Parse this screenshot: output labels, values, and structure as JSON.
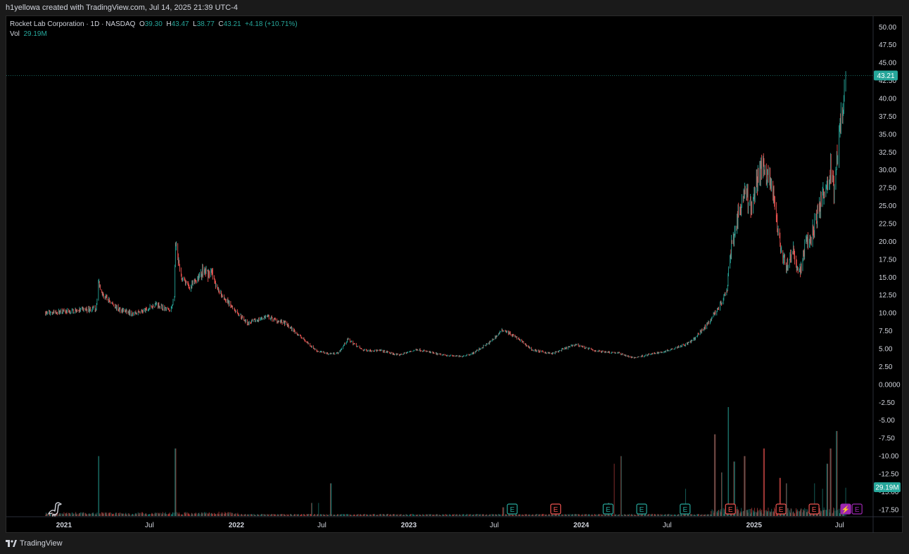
{
  "header": {
    "credit": "h1yellowa created with TradingView.com, Jul 14, 2025 21:39 UTC-4"
  },
  "legend": {
    "symbol": "Rocket Lab Corporation · 1D · NASDAQ",
    "o_label": "O",
    "o_val": "39.30",
    "h_label": "H",
    "h_val": "43.47",
    "l_label": "L",
    "l_val": "38.77",
    "c_label": "C",
    "c_val": "43.21",
    "change": "+4.18 (+10.71%)",
    "vol_label": "Vol",
    "vol_val": "29.19M"
  },
  "footer": {
    "brand": "TradingView"
  },
  "colors": {
    "up": "#26a69a",
    "down": "#ef5350",
    "axis_text": "#d1d4dc",
    "bg": "#000000",
    "purple": "#9c27b0"
  },
  "chart_data": {
    "type": "candlestick",
    "symbol": "Rocket Lab Corporation",
    "interval": "1D",
    "exchange": "NASDAQ",
    "y_ticks": [
      "50.00",
      "47.50",
      "45.00",
      "42.50",
      "40.00",
      "37.50",
      "35.00",
      "32.50",
      "30.00",
      "27.50",
      "25.00",
      "22.50",
      "20.00",
      "17.50",
      "15.00",
      "12.50",
      "10.00",
      "7.50",
      "5.00",
      "2.50",
      "0.0000",
      "-2.50",
      "-5.00",
      "-7.50",
      "-10.00",
      "-12.50",
      "-15.00",
      "-17.50"
    ],
    "ylim": [
      -18.5,
      51.5
    ],
    "x_ticks": [
      {
        "label": "2021",
        "date": "2021-01-01"
      },
      {
        "label": "Jul",
        "date": "2021-07-01"
      },
      {
        "label": "2022",
        "date": "2022-01-01"
      },
      {
        "label": "Jul",
        "date": "2022-07-01"
      },
      {
        "label": "2023",
        "date": "2023-01-01"
      },
      {
        "label": "Jul",
        "date": "2023-07-01"
      },
      {
        "label": "2024",
        "date": "2024-01-01"
      },
      {
        "label": "Jul",
        "date": "2024-07-01"
      },
      {
        "label": "2025",
        "date": "2025-01-01"
      },
      {
        "label": "Jul",
        "date": "2025-07-01"
      }
    ],
    "x_range": [
      "2020-09-01",
      "2025-09-10"
    ],
    "price_path": [
      [
        "2020-11-23",
        10.0
      ],
      [
        "2021-01-20",
        10.3
      ],
      [
        "2021-03-10",
        10.6
      ],
      [
        "2021-03-15",
        14.4
      ],
      [
        "2021-03-25",
        12.5
      ],
      [
        "2021-04-25",
        10.6
      ],
      [
        "2021-05-25",
        9.9
      ],
      [
        "2021-06-25",
        10.4
      ],
      [
        "2021-07-15",
        11.3
      ],
      [
        "2021-08-15",
        10.2
      ],
      [
        "2021-08-23",
        12.5
      ],
      [
        "2021-08-25",
        19.5
      ],
      [
        "2021-09-05",
        15.0
      ],
      [
        "2021-09-25",
        13.5
      ],
      [
        "2021-10-20",
        15.8
      ],
      [
        "2021-11-10",
        15.5
      ],
      [
        "2021-11-20",
        13.5
      ],
      [
        "2021-12-15",
        11.5
      ],
      [
        "2022-01-25",
        8.5
      ],
      [
        "2022-03-05",
        9.5
      ],
      [
        "2022-04-15",
        8.5
      ],
      [
        "2022-05-20",
        6.5
      ],
      [
        "2022-06-20",
        4.7
      ],
      [
        "2022-07-15",
        4.3
      ],
      [
        "2022-08-05",
        4.4
      ],
      [
        "2022-08-25",
        6.3
      ],
      [
        "2022-09-25",
        4.8
      ],
      [
        "2022-11-05",
        4.7
      ],
      [
        "2022-12-10",
        4.1
      ],
      [
        "2023-01-20",
        4.9
      ],
      [
        "2023-03-05",
        4.2
      ],
      [
        "2023-04-20",
        3.9
      ],
      [
        "2023-05-15",
        4.3
      ],
      [
        "2023-06-20",
        5.8
      ],
      [
        "2023-07-20",
        7.7
      ],
      [
        "2023-08-20",
        6.4
      ],
      [
        "2023-09-20",
        4.8
      ],
      [
        "2023-11-01",
        4.3
      ],
      [
        "2023-12-20",
        5.6
      ],
      [
        "2024-01-30",
        4.7
      ],
      [
        "2024-03-20",
        4.4
      ],
      [
        "2024-04-20",
        3.7
      ],
      [
        "2024-05-25",
        4.2
      ],
      [
        "2024-06-25",
        4.6
      ],
      [
        "2024-07-25",
        5.3
      ],
      [
        "2024-08-10",
        5.6
      ],
      [
        "2024-08-25",
        6.2
      ],
      [
        "2024-09-25",
        8.5
      ],
      [
        "2024-10-20",
        11.0
      ],
      [
        "2024-11-05",
        13.0
      ],
      [
        "2024-11-10",
        17.8
      ],
      [
        "2024-11-25",
        23.0
      ],
      [
        "2024-12-05",
        25.0
      ],
      [
        "2024-12-12",
        27.0
      ],
      [
        "2024-12-25",
        25.0
      ],
      [
        "2025-01-10",
        29.0
      ],
      [
        "2025-01-20",
        31.5
      ],
      [
        "2025-01-30",
        29.0
      ],
      [
        "2025-02-10",
        27.5
      ],
      [
        "2025-02-25",
        19.0
      ],
      [
        "2025-03-10",
        16.5
      ],
      [
        "2025-03-25",
        18.5
      ],
      [
        "2025-04-07",
        15.5
      ],
      [
        "2025-04-20",
        19.5
      ],
      [
        "2025-05-01",
        20.5
      ],
      [
        "2025-05-15",
        23.5
      ],
      [
        "2025-05-25",
        26.0
      ],
      [
        "2025-06-05",
        27.5
      ],
      [
        "2025-06-12",
        30.0
      ],
      [
        "2025-06-20",
        26.5
      ],
      [
        "2025-06-30",
        35.5
      ],
      [
        "2025-07-08",
        39.0
      ],
      [
        "2025-07-14",
        43.21
      ]
    ],
    "last_price": 43.21,
    "last_price_label": "43.21",
    "last_volume_label": "29.19M",
    "volume_spikes": [
      [
        "2021-03-15",
        0.55
      ],
      [
        "2021-08-25",
        0.62
      ],
      [
        "2022-06-10",
        0.12
      ],
      [
        "2022-06-25",
        0.12
      ],
      [
        "2022-07-20",
        0.3
      ],
      [
        "2023-07-20",
        0.08
      ],
      [
        "2023-11-10",
        0.08
      ],
      [
        "2024-02-28",
        0.12
      ],
      [
        "2024-03-10",
        0.48
      ],
      [
        "2024-03-25",
        0.55
      ],
      [
        "2024-08-10",
        0.25
      ],
      [
        "2024-10-10",
        0.75
      ],
      [
        "2024-10-25",
        0.4
      ],
      [
        "2024-11-08",
        1.0
      ],
      [
        "2024-11-20",
        0.5
      ],
      [
        "2024-12-12",
        0.55
      ],
      [
        "2025-01-22",
        0.62
      ],
      [
        "2025-02-25",
        0.35
      ],
      [
        "2025-03-10",
        0.3
      ],
      [
        "2025-05-10",
        0.3
      ],
      [
        "2025-05-25",
        0.25
      ],
      [
        "2025-06-05",
        0.48
      ],
      [
        "2025-06-12",
        0.62
      ],
      [
        "2025-06-25",
        0.78
      ],
      [
        "2025-07-14",
        0.26
      ]
    ],
    "events": [
      {
        "date": "2023-08-08",
        "label": "E",
        "kind": "earnings-up"
      },
      {
        "date": "2023-11-08",
        "label": "E",
        "kind": "earnings-down"
      },
      {
        "date": "2024-02-27",
        "label": "E",
        "kind": "earnings-up"
      },
      {
        "date": "2024-05-08",
        "label": "E",
        "kind": "earnings-up"
      },
      {
        "date": "2024-08-08",
        "label": "E",
        "kind": "earnings-up"
      },
      {
        "date": "2024-11-12",
        "label": "E",
        "kind": "earnings-down"
      },
      {
        "date": "2025-02-27",
        "label": "E",
        "kind": "earnings-down"
      },
      {
        "date": "2025-05-08",
        "label": "E",
        "kind": "earnings-down"
      },
      {
        "date": "2025-07-14",
        "label": "⚡",
        "kind": "flash"
      },
      {
        "date": "2025-08-07",
        "label": "E",
        "kind": "earnings-future"
      }
    ]
  }
}
